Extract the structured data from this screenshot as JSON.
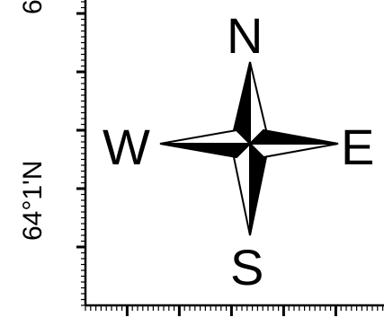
{
  "map": {
    "lat_label": "64°1'N",
    "lat_label_top_fragment": "6"
  },
  "compass": {
    "north": "N",
    "south": "S",
    "west": "W",
    "east": "E"
  },
  "colors": {
    "ink": "#000000",
    "background": "#ffffff"
  }
}
